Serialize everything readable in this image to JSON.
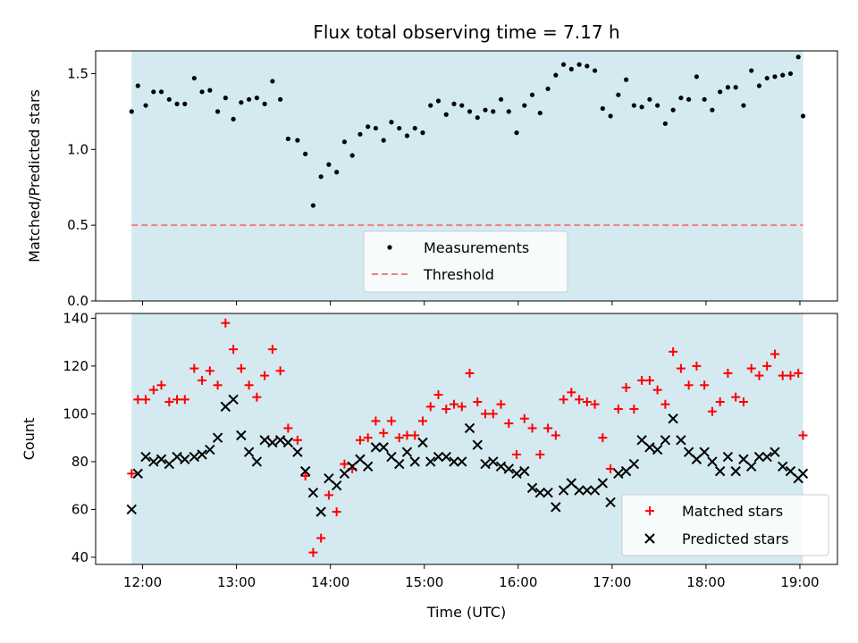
{
  "chart_data": [
    {
      "type": "scatter",
      "title": "Flux total observing time = 7.17 h",
      "ylabel": "Matched/Predicted stars",
      "xlabel": "",
      "xlim": [
        "11:30",
        "19:24"
      ],
      "ylim": [
        0,
        1.65
      ],
      "yticks": [
        0.0,
        0.5,
        1.0,
        1.5
      ],
      "ytick_labels": [
        "0.0",
        "0.5",
        "1.0",
        "1.5"
      ],
      "shaded_span": [
        "11:53",
        "19:02"
      ],
      "shade_color": "#d4eaf0",
      "threshold": 0.5,
      "legend_placement": "lower-center",
      "series": [
        {
          "name": "Measurements",
          "color": "#000000",
          "marker": "dot",
          "x": [
            "11:53",
            "11:57",
            "12:02",
            "12:07",
            "12:12",
            "12:17",
            "12:22",
            "12:27",
            "12:33",
            "12:38",
            "12:43",
            "12:48",
            "12:53",
            "12:58",
            "13:03",
            "13:08",
            "13:13",
            "13:18",
            "13:23",
            "13:28",
            "13:33",
            "13:39",
            "13:44",
            "13:49",
            "13:54",
            "13:59",
            "14:04",
            "14:09",
            "14:14",
            "14:19",
            "14:24",
            "14:29",
            "14:34",
            "14:39",
            "14:44",
            "14:49",
            "14:54",
            "14:59",
            "15:04",
            "15:09",
            "15:14",
            "15:19",
            "15:24",
            "15:29",
            "15:34",
            "15:39",
            "15:44",
            "15:49",
            "15:54",
            "15:59",
            "16:04",
            "16:09",
            "16:14",
            "16:19",
            "16:24",
            "16:29",
            "16:34",
            "16:39",
            "16:44",
            "16:49",
            "16:54",
            "16:59",
            "17:04",
            "17:09",
            "17:14",
            "17:19",
            "17:24",
            "17:29",
            "17:34",
            "17:39",
            "17:44",
            "17:49",
            "17:54",
            "17:59",
            "18:04",
            "18:09",
            "18:14",
            "18:19",
            "18:24",
            "18:29",
            "18:34",
            "18:39",
            "18:44",
            "18:49",
            "18:54",
            "18:59",
            "19:02"
          ],
          "y": [
            1.25,
            1.42,
            1.29,
            1.38,
            1.38,
            1.33,
            1.3,
            1.3,
            1.47,
            1.38,
            1.39,
            1.25,
            1.34,
            1.2,
            1.31,
            1.33,
            1.34,
            1.3,
            1.45,
            1.33,
            1.07,
            1.06,
            0.97,
            0.63,
            0.82,
            0.9,
            0.85,
            1.05,
            0.96,
            1.1,
            1.15,
            1.14,
            1.06,
            1.18,
            1.14,
            1.09,
            1.14,
            1.11,
            1.29,
            1.32,
            1.23,
            1.3,
            1.29,
            1.25,
            1.21,
            1.26,
            1.25,
            1.33,
            1.25,
            1.11,
            1.29,
            1.36,
            1.24,
            1.4,
            1.49,
            1.56,
            1.53,
            1.56,
            1.55,
            1.52,
            1.27,
            1.22,
            1.36,
            1.46,
            1.29,
            1.28,
            1.33,
            1.29,
            1.17,
            1.26,
            1.34,
            1.33,
            1.48,
            1.33,
            1.26,
            1.38,
            1.41,
            1.41,
            1.29,
            1.52,
            1.42,
            1.47,
            1.48,
            1.49,
            1.5,
            1.61,
            1.22
          ]
        },
        {
          "name": "Threshold",
          "color": "#f08080",
          "line_style": "dashed"
        }
      ]
    },
    {
      "type": "scatter",
      "title": "",
      "ylabel": "Count",
      "xlabel": "Time (UTC)",
      "xlim": [
        "11:30",
        "19:24"
      ],
      "ylim": [
        37,
        142
      ],
      "yticks": [
        40,
        60,
        80,
        100,
        120,
        140
      ],
      "ytick_labels": [
        "40",
        "60",
        "80",
        "100",
        "120",
        "140"
      ],
      "xticks": [
        "12:00",
        "13:00",
        "14:00",
        "15:00",
        "16:00",
        "17:00",
        "18:00",
        "19:00"
      ],
      "shaded_span": [
        "11:53",
        "19:02"
      ],
      "shade_color": "#d4eaf0",
      "legend_placement": "lower-right",
      "series": [
        {
          "name": "Matched stars",
          "color": "#ff0000",
          "marker": "plus",
          "x": [
            "11:53",
            "11:57",
            "12:02",
            "12:07",
            "12:12",
            "12:17",
            "12:22",
            "12:27",
            "12:33",
            "12:38",
            "12:43",
            "12:48",
            "12:53",
            "12:58",
            "13:03",
            "13:08",
            "13:13",
            "13:18",
            "13:23",
            "13:28",
            "13:33",
            "13:39",
            "13:44",
            "13:49",
            "13:54",
            "13:59",
            "14:04",
            "14:09",
            "14:14",
            "14:19",
            "14:24",
            "14:29",
            "14:34",
            "14:39",
            "14:44",
            "14:49",
            "14:54",
            "14:59",
            "15:04",
            "15:09",
            "15:14",
            "15:19",
            "15:24",
            "15:29",
            "15:34",
            "15:39",
            "15:44",
            "15:49",
            "15:54",
            "15:59",
            "16:04",
            "16:09",
            "16:14",
            "16:19",
            "16:24",
            "16:29",
            "16:34",
            "16:39",
            "16:44",
            "16:49",
            "16:54",
            "16:59",
            "17:04",
            "17:09",
            "17:14",
            "17:19",
            "17:24",
            "17:29",
            "17:34",
            "17:39",
            "17:44",
            "17:49",
            "17:54",
            "17:59",
            "18:04",
            "18:09",
            "18:14",
            "18:19",
            "18:24",
            "18:29",
            "18:34",
            "18:39",
            "18:44",
            "18:49",
            "18:54",
            "18:59",
            "19:02"
          ],
          "y": [
            75,
            106,
            106,
            110,
            112,
            105,
            106,
            106,
            119,
            114,
            118,
            112,
            138,
            127,
            119,
            112,
            107,
            116,
            127,
            118,
            94,
            89,
            74,
            42,
            48,
            66,
            59,
            79,
            77,
            89,
            90,
            97,
            92,
            97,
            90,
            91,
            91,
            97,
            103,
            108,
            102,
            104,
            103,
            117,
            105,
            100,
            100,
            104,
            96,
            83,
            98,
            94,
            83,
            94,
            91,
            106,
            109,
            106,
            105,
            104,
            90,
            77,
            102,
            111,
            102,
            114,
            114,
            110,
            104,
            126,
            119,
            112,
            120,
            112,
            101,
            105,
            117,
            107,
            105,
            119,
            116,
            120,
            125,
            116,
            116,
            117,
            91
          ]
        },
        {
          "name": "Predicted stars",
          "color": "#000000",
          "marker": "x",
          "x": [
            "11:53",
            "11:57",
            "12:02",
            "12:07",
            "12:12",
            "12:17",
            "12:22",
            "12:27",
            "12:33",
            "12:38",
            "12:43",
            "12:48",
            "12:53",
            "12:58",
            "13:03",
            "13:08",
            "13:13",
            "13:18",
            "13:23",
            "13:28",
            "13:33",
            "13:39",
            "13:44",
            "13:49",
            "13:54",
            "13:59",
            "14:04",
            "14:09",
            "14:14",
            "14:19",
            "14:24",
            "14:29",
            "14:34",
            "14:39",
            "14:44",
            "14:49",
            "14:54",
            "14:59",
            "15:04",
            "15:09",
            "15:14",
            "15:19",
            "15:24",
            "15:29",
            "15:34",
            "15:39",
            "15:44",
            "15:49",
            "15:54",
            "15:59",
            "16:04",
            "16:09",
            "16:14",
            "16:19",
            "16:24",
            "16:29",
            "16:34",
            "16:39",
            "16:44",
            "16:49",
            "16:54",
            "16:59",
            "17:04",
            "17:09",
            "17:14",
            "17:19",
            "17:24",
            "17:29",
            "17:34",
            "17:39",
            "17:44",
            "17:49",
            "17:54",
            "17:59",
            "18:04",
            "18:09",
            "18:14",
            "18:19",
            "18:24",
            "18:29",
            "18:34",
            "18:39",
            "18:44",
            "18:49",
            "18:54",
            "18:59",
            "19:02"
          ],
          "y": [
            60,
            75,
            82,
            80,
            81,
            79,
            82,
            81,
            82,
            83,
            85,
            90,
            103,
            106,
            91,
            84,
            80,
            89,
            88,
            89,
            88,
            84,
            76,
            67,
            59,
            73,
            70,
            75,
            78,
            81,
            78,
            86,
            86,
            82,
            79,
            84,
            80,
            88,
            80,
            82,
            82,
            80,
            80,
            94,
            87,
            79,
            80,
            78,
            77,
            75,
            76,
            69,
            67,
            67,
            61,
            68,
            71,
            68,
            68,
            68,
            71,
            63,
            75,
            76,
            79,
            89,
            86,
            85,
            89,
            98,
            89,
            84,
            81,
            84,
            80,
            76,
            82,
            76,
            81,
            78,
            82,
            82,
            84,
            78,
            76,
            73,
            75
          ]
        }
      ]
    }
  ]
}
